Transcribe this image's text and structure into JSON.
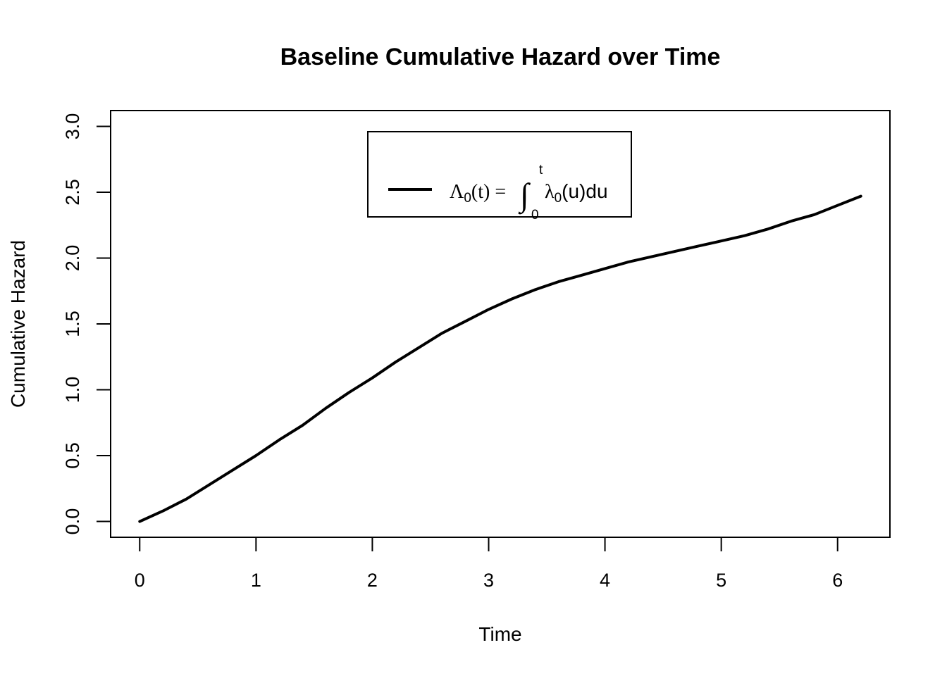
{
  "chart_data": {
    "type": "line",
    "title": "Baseline Cumulative Hazard over Time",
    "xlabel": "Time",
    "ylabel": "Cumulative Hazard",
    "xlim": [
      -0.25,
      6.45
    ],
    "ylim": [
      -0.12,
      3.12
    ],
    "xticks": [
      0,
      1,
      2,
      3,
      4,
      5,
      6
    ],
    "xtick_labels": [
      "0",
      "1",
      "2",
      "3",
      "4",
      "5",
      "6"
    ],
    "yticks": [
      0,
      0.5,
      1,
      1.5,
      2,
      2.5,
      3
    ],
    "ytick_labels": [
      "0.0",
      "0.5",
      "1.0",
      "1.5",
      "2.0",
      "2.5",
      "3.0"
    ],
    "grid": false,
    "legend": {
      "position": "top-center",
      "entries": [
        {
          "label_parts": {
            "lhs_symbol": "Λ",
            "lhs_sub": "0",
            "lhs_arg": "(t) =",
            "integral": "∫",
            "upper": "t",
            "lower": "0",
            "integrand_symbol": "λ",
            "integrand_sub": "0",
            "integrand_arg": "(u)du"
          },
          "color": "#000000"
        }
      ]
    },
    "series": [
      {
        "color": "#000000",
        "x": [
          0,
          0.2,
          0.4,
          0.6,
          0.8,
          1.0,
          1.2,
          1.4,
          1.6,
          1.8,
          2.0,
          2.2,
          2.4,
          2.6,
          2.8,
          3.0,
          3.2,
          3.4,
          3.6,
          3.8,
          4.0,
          4.2,
          4.4,
          4.6,
          4.8,
          5.0,
          5.2,
          5.4,
          5.6,
          5.8,
          6.0,
          6.2
        ],
        "y": [
          0.0,
          0.08,
          0.17,
          0.28,
          0.39,
          0.5,
          0.62,
          0.73,
          0.86,
          0.98,
          1.09,
          1.21,
          1.32,
          1.43,
          1.52,
          1.61,
          1.69,
          1.76,
          1.82,
          1.87,
          1.92,
          1.97,
          2.01,
          2.05,
          2.09,
          2.13,
          2.17,
          2.22,
          2.28,
          2.33,
          2.4,
          2.47
        ]
      }
    ]
  }
}
